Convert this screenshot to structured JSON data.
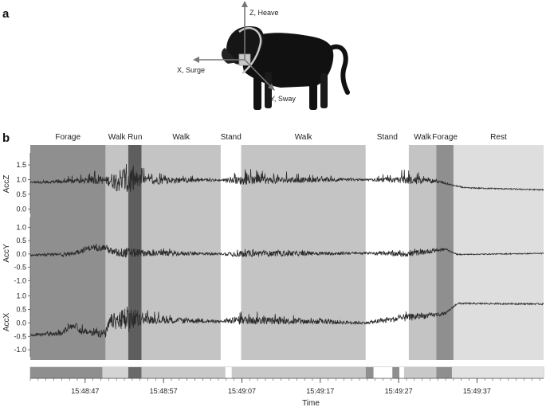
{
  "panel_a": {
    "label": "a",
    "axes": [
      {
        "key": "z",
        "text": "Z, Heave"
      },
      {
        "key": "x",
        "text": "X, Surge"
      },
      {
        "key": "y",
        "text": "Y, Sway"
      }
    ]
  },
  "chart_data": {
    "type": "line",
    "panel_label": "b",
    "xlabel": "Time",
    "time_ticks": [
      "15:48:47",
      "15:48:57",
      "15:49:07",
      "15:49:17",
      "15:49:27",
      "15:49:37"
    ],
    "time_tick_seconds": [
      7,
      17,
      27,
      37,
      47,
      57
    ],
    "x_range_seconds": [
      0,
      65.5
    ],
    "colors": {
      "Forage": "#8f8f8f",
      "Walk": "#c4c4c4",
      "Run": "#5e5e5e",
      "Stand": "#ffffff",
      "Rest": "#dedede",
      "trace": "#2a2a2a"
    },
    "segments": [
      {
        "label": "Forage",
        "start": 0.0,
        "end": 9.6
      },
      {
        "label": "Walk",
        "start": 9.6,
        "end": 12.5
      },
      {
        "label": "Run",
        "start": 12.5,
        "end": 14.2
      },
      {
        "label": "Walk",
        "start": 14.2,
        "end": 24.3
      },
      {
        "label": "Stand",
        "start": 24.3,
        "end": 26.9
      },
      {
        "label": "Walk",
        "start": 26.9,
        "end": 42.8
      },
      {
        "label": "Stand",
        "start": 42.8,
        "end": 48.3
      },
      {
        "label": "Walk",
        "start": 48.3,
        "end": 51.8
      },
      {
        "label": "Forage",
        "start": 51.8,
        "end": 54.0
      },
      {
        "label": "Rest",
        "start": 54.0,
        "end": 65.5
      }
    ],
    "bottom_bar": [
      {
        "start": 0.0,
        "end": 9.2,
        "shade": "#8f8f8f"
      },
      {
        "start": 9.2,
        "end": 12.5,
        "shade": "#d4d4d4"
      },
      {
        "start": 12.5,
        "end": 14.2,
        "shade": "#6a6a6a"
      },
      {
        "start": 14.2,
        "end": 24.9,
        "shade": "#c8c8c8"
      },
      {
        "start": 24.9,
        "end": 25.7,
        "shade": "#ffffff"
      },
      {
        "start": 25.7,
        "end": 42.8,
        "shade": "#c8c8c8"
      },
      {
        "start": 42.8,
        "end": 43.8,
        "shade": "#8f8f8f"
      },
      {
        "start": 43.8,
        "end": 45.2,
        "shade": "#ffffff"
      },
      {
        "start": 45.2,
        "end": 46.2,
        "shade": "#ffffff"
      },
      {
        "start": 46.2,
        "end": 47.1,
        "shade": "#8f8f8f"
      },
      {
        "start": 47.1,
        "end": 47.7,
        "shade": "#ffffff"
      },
      {
        "start": 47.7,
        "end": 51.8,
        "shade": "#c8c8c8"
      },
      {
        "start": 51.8,
        "end": 53.8,
        "shade": "#8f8f8f"
      },
      {
        "start": 53.8,
        "end": 65.5,
        "shade": "#e2e2e2"
      }
    ],
    "series": [
      {
        "name": "AccZ",
        "ylim": [
          -0.1,
          1.8
        ],
        "yticks": [
          1.5,
          1.0,
          0.5,
          0.0
        ],
        "tick_labels": [
          "1.5",
          "1.0",
          "0.5",
          "0.0"
        ],
        "baseline": [
          [
            0,
            0.9
          ],
          [
            9.6,
            0.97
          ],
          [
            14.2,
            0.97
          ],
          [
            24.3,
            0.98
          ],
          [
            26.9,
            0.97
          ],
          [
            42.8,
            1.0
          ],
          [
            48.3,
            0.97
          ],
          [
            51.8,
            0.95
          ],
          [
            54.0,
            0.8
          ],
          [
            55.5,
            0.72
          ],
          [
            65.5,
            0.65
          ]
        ],
        "noise": [
          [
            0,
            0.025
          ],
          [
            9.6,
            0.13
          ],
          [
            12.5,
            0.6
          ],
          [
            14.2,
            0.16
          ],
          [
            24.3,
            0.03
          ],
          [
            26.9,
            0.15
          ],
          [
            42.8,
            0.03
          ],
          [
            48.3,
            0.13
          ],
          [
            51.8,
            0.06
          ],
          [
            54.0,
            0.02
          ],
          [
            65.5,
            0.02
          ]
        ],
        "spike": [
          [
            0,
            0
          ],
          [
            9.6,
            0.35
          ],
          [
            12.5,
            0
          ],
          [
            14.2,
            0.35
          ],
          [
            24.3,
            0
          ],
          [
            26.9,
            0.35
          ],
          [
            42.8,
            0
          ],
          [
            48.3,
            0.35
          ],
          [
            51.8,
            0
          ],
          [
            65.5,
            0
          ]
        ]
      },
      {
        "name": "AccY",
        "ylim": [
          -1.2,
          1.25
        ],
        "yticks": [
          1.0,
          0.5,
          0.0,
          -0.5,
          -1.0
        ],
        "tick_labels": [
          "1.0",
          "0.5",
          "0.0",
          "-0.5",
          "-1.0"
        ],
        "baseline": [
          [
            0,
            -0.05
          ],
          [
            5,
            -0.02
          ],
          [
            7.5,
            0.22
          ],
          [
            9.6,
            0.25
          ],
          [
            10.5,
            0.05
          ],
          [
            24.3,
            0.0
          ],
          [
            42.8,
            0.03
          ],
          [
            48.3,
            0.0
          ],
          [
            53.0,
            0.18
          ],
          [
            54.5,
            -0.02
          ],
          [
            65.5,
            0.02
          ]
        ],
        "noise": [
          [
            0,
            0.03
          ],
          [
            9.6,
            0.13
          ],
          [
            12.5,
            0.2
          ],
          [
            14.2,
            0.13
          ],
          [
            24.3,
            0.04
          ],
          [
            26.9,
            0.13
          ],
          [
            42.8,
            0.04
          ],
          [
            48.3,
            0.12
          ],
          [
            51.8,
            0.08
          ],
          [
            54.0,
            0.02
          ],
          [
            65.5,
            0.02
          ]
        ],
        "spike": [
          [
            0,
            0
          ],
          [
            9.6,
            0.12
          ],
          [
            14.2,
            0.12
          ],
          [
            24.3,
            0
          ],
          [
            26.9,
            0.12
          ],
          [
            42.8,
            0
          ],
          [
            48.3,
            0.1
          ],
          [
            51.8,
            0
          ],
          [
            65.5,
            0
          ]
        ]
      },
      {
        "name": "AccX",
        "ylim": [
          -1.2,
          1.25
        ],
        "yticks": [
          1.0,
          0.5,
          0.0,
          -0.5,
          -1.0
        ],
        "tick_labels": [
          "1.0",
          "0.5",
          "0.0",
          "-0.5",
          "-1.0"
        ],
        "baseline": [
          [
            0,
            -0.45
          ],
          [
            4,
            -0.4
          ],
          [
            5,
            -0.15
          ],
          [
            5.8,
            -0.1
          ],
          [
            6.5,
            -0.32
          ],
          [
            9.6,
            -0.4
          ],
          [
            10.2,
            0.05
          ],
          [
            14.2,
            0.12
          ],
          [
            24.3,
            0.05
          ],
          [
            26.9,
            0.1
          ],
          [
            42.8,
            0.0
          ],
          [
            48.3,
            0.2
          ],
          [
            51.8,
            0.3
          ],
          [
            53.0,
            0.35
          ],
          [
            54.5,
            0.72
          ],
          [
            65.5,
            0.7
          ]
        ],
        "noise": [
          [
            0,
            0.04
          ],
          [
            9.6,
            0.16
          ],
          [
            12.5,
            0.55
          ],
          [
            14.2,
            0.16
          ],
          [
            24.3,
            0.05
          ],
          [
            26.9,
            0.16
          ],
          [
            42.8,
            0.05
          ],
          [
            48.3,
            0.14
          ],
          [
            51.8,
            0.08
          ],
          [
            54.0,
            0.03
          ],
          [
            65.5,
            0.03
          ]
        ],
        "spike": [
          [
            0,
            0
          ],
          [
            9.6,
            0.25
          ],
          [
            12.5,
            0
          ],
          [
            14.2,
            0.25
          ],
          [
            24.3,
            0
          ],
          [
            26.9,
            0.25
          ],
          [
            42.8,
            0
          ],
          [
            48.3,
            0.2
          ],
          [
            51.8,
            0
          ],
          [
            65.5,
            0
          ]
        ]
      }
    ]
  }
}
